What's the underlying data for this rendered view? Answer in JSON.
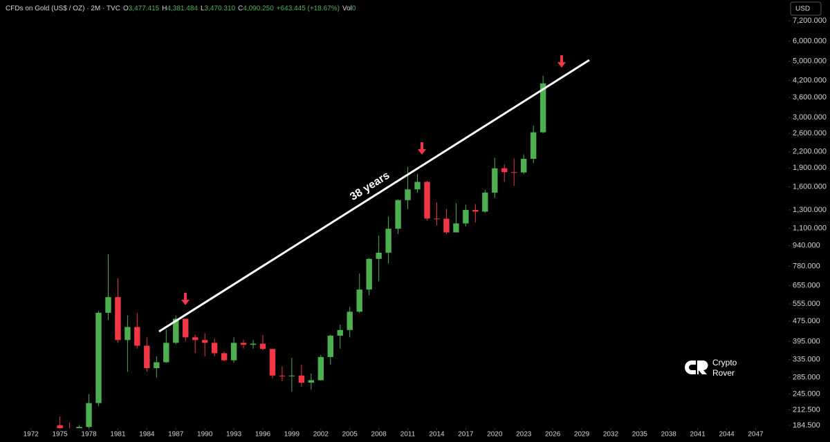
{
  "chart_data": {
    "type": "candlestick",
    "header": {
      "title": "CFDs on Gold (US$ / OZ) · 2M · TVC",
      "fields": [
        {
          "label": "O",
          "value": "3,477.415"
        },
        {
          "label": "H",
          "value": "4,381.484"
        },
        {
          "label": "L",
          "value": "3,470.310"
        },
        {
          "label": "C",
          "value": "4,090.250"
        }
      ],
      "change": "+643.445 (+18.67%)",
      "volume": {
        "label": "Vol",
        "value": "0"
      }
    },
    "currency_button": "USD",
    "annotation": "38 years",
    "watermark": [
      "Crypto",
      "Rover"
    ],
    "log_scale": true,
    "up_color": "#4caf50",
    "down_color": "#f23645",
    "x": [
      1975,
      1976,
      1977,
      1978,
      1979,
      1980,
      1981,
      1982,
      1983,
      1984,
      1985,
      1986,
      1987,
      1988,
      1989,
      1990,
      1991,
      1992,
      1993,
      1994,
      1995,
      1996,
      1997,
      1998,
      1999,
      2000,
      2001,
      2002,
      2003,
      2004,
      2005,
      2006,
      2007,
      2008,
      2009,
      2010,
      2011,
      2012,
      2013,
      2014,
      2015,
      2016,
      2017,
      2018,
      2019,
      2020,
      2021,
      2022,
      2023,
      2024,
      2025
    ],
    "open": [
      185,
      180,
      178,
      182,
      226,
      512,
      590,
      400,
      450,
      380,
      310,
      327,
      390,
      485,
      410,
      400,
      390,
      355,
      333,
      390,
      383,
      387,
      369,
      290,
      288,
      290,
      272,
      278,
      343,
      416,
      438,
      517,
      632,
      834,
      882,
      1096,
      1420,
      1565,
      1675,
      1202,
      1200,
      1060,
      1150,
      1300,
      1280,
      1520,
      1895,
      1830,
      1825,
      2065,
      2625
    ],
    "high": [
      200,
      190,
      185,
      245,
      520,
      870,
      700,
      500,
      510,
      410,
      345,
      440,
      500,
      485,
      420,
      425,
      405,
      360,
      410,
      400,
      400,
      418,
      368,
      315,
      340,
      320,
      295,
      350,
      420,
      460,
      540,
      730,
      840,
      1030,
      1225,
      1430,
      1920,
      1800,
      1690,
      1390,
      1310,
      1380,
      1360,
      1370,
      1560,
      2080,
      1960,
      2070,
      2150,
      2790,
      4380
    ],
    "low": [
      175,
      172,
      175,
      180,
      220,
      480,
      390,
      300,
      370,
      300,
      285,
      325,
      385,
      395,
      355,
      345,
      345,
      330,
      325,
      370,
      370,
      365,
      283,
      275,
      250,
      262,
      255,
      277,
      320,
      370,
      410,
      510,
      600,
      680,
      800,
      1045,
      1310,
      1520,
      1180,
      1130,
      1045,
      1060,
      1120,
      1160,
      1265,
      1450,
      1675,
      1615,
      1800,
      1985,
      2600
    ],
    "close": [
      180,
      178,
      182,
      226,
      512,
      590,
      400,
      450,
      380,
      310,
      327,
      390,
      485,
      410,
      400,
      390,
      355,
      333,
      390,
      383,
      387,
      369,
      290,
      288,
      290,
      272,
      278,
      343,
      416,
      438,
      517,
      632,
      834,
      882,
      1096,
      1420,
      1565,
      1675,
      1202,
      1200,
      1060,
      1150,
      1300,
      1280,
      1520,
      1895,
      1830,
      1825,
      2065,
      2625,
      4090
    ],
    "xlim": [
      1968.8,
      2050.4
    ],
    "xticks": [
      1972,
      1975,
      1978,
      1981,
      1984,
      1987,
      1990,
      1993,
      1996,
      1999,
      2002,
      2005,
      2008,
      2011,
      2014,
      2017,
      2020,
      2023,
      2026,
      2029,
      2032,
      2035,
      2038,
      2041,
      2044,
      2047
    ],
    "ylim": [
      180,
      8700
    ],
    "yticks": [
      {
        "value": 184.5,
        "label": "184.500"
      },
      {
        "value": 212.5,
        "label": "212.500"
      },
      {
        "value": 245,
        "label": "245.000"
      },
      {
        "value": 285,
        "label": "285.000"
      },
      {
        "value": 335,
        "label": "335.000"
      },
      {
        "value": 395,
        "label": "395.000"
      },
      {
        "value": 475,
        "label": "475.000"
      },
      {
        "value": 555,
        "label": "555.000"
      },
      {
        "value": 655,
        "label": "655.000"
      },
      {
        "value": 780,
        "label": "780.000"
      },
      {
        "value": 940,
        "label": "940.000"
      },
      {
        "value": 1100,
        "label": "1,100.000"
      },
      {
        "value": 1300,
        "label": "1,300.000"
      },
      {
        "value": 1600,
        "label": "1,600.000"
      },
      {
        "value": 1900,
        "label": "1,900.000"
      },
      {
        "value": 2200,
        "label": "2,200.000"
      },
      {
        "value": 2600,
        "label": "2,600.000"
      },
      {
        "value": 3000,
        "label": "3,000.000"
      },
      {
        "value": 3600,
        "label": "3,600.000"
      },
      {
        "value": 4200,
        "label": "4,200.000"
      },
      {
        "value": 5000,
        "label": "5,000.000"
      },
      {
        "value": 6000,
        "label": "6,000.000"
      },
      {
        "value": 7200,
        "label": "7,200.000"
      }
    ],
    "grid": false
  }
}
